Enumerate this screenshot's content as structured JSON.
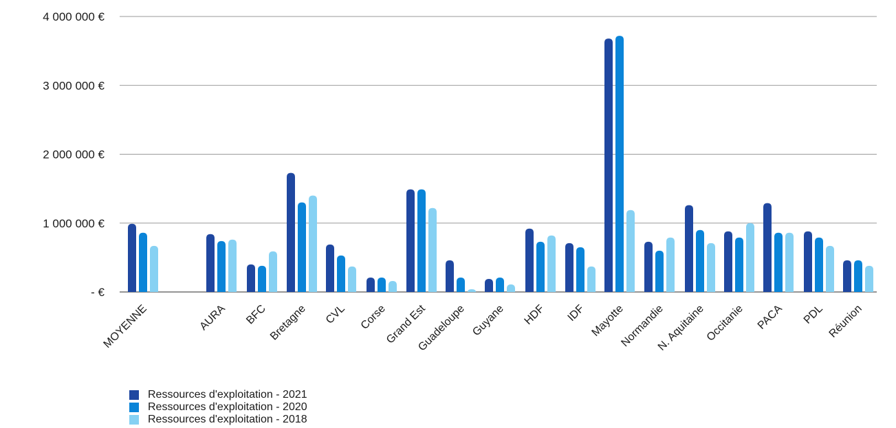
{
  "chart_data": {
    "type": "bar",
    "title": "",
    "xlabel": "",
    "ylabel": "",
    "ylim": [
      0,
      4000000
    ],
    "yticks": [
      {
        "value": 0,
        "label": "-     €"
      },
      {
        "value": 1000000,
        "label": "1 000 000  €"
      },
      {
        "value": 2000000,
        "label": "2 000 000  €"
      },
      {
        "value": 3000000,
        "label": "3 000 000  €"
      },
      {
        "value": 4000000,
        "label": "4 000 000  €"
      }
    ],
    "grid": true,
    "legend_position": "bottom-left",
    "categories": [
      "MOYENNE",
      "AURA",
      "BFC",
      "Bretagne",
      "CVL",
      "Corse",
      "Grand Est",
      "Guadeloupe",
      "Guyane",
      "HDF",
      "IDF",
      "Mayotte",
      "Normandie",
      "N. Aquitaine",
      "Occitanie",
      "PACA",
      "PDL",
      "Réunion"
    ],
    "series": [
      {
        "name": "Ressources d'exploitation - 2021",
        "color": "#1f47a0",
        "values": [
          990000,
          840000,
          400000,
          1730000,
          690000,
          210000,
          1490000,
          460000,
          190000,
          920000,
          710000,
          3680000,
          730000,
          1260000,
          880000,
          1290000,
          880000,
          460000
        ]
      },
      {
        "name": "Ressources d'exploitation - 2020",
        "color": "#0a84d8",
        "values": [
          860000,
          740000,
          380000,
          1300000,
          530000,
          210000,
          1490000,
          210000,
          210000,
          730000,
          650000,
          3720000,
          600000,
          900000,
          790000,
          860000,
          790000,
          460000
        ]
      },
      {
        "name": "Ressources d'exploitation - 2018",
        "color": "#86d1f3",
        "values": [
          670000,
          760000,
          590000,
          1400000,
          370000,
          160000,
          1220000,
          40000,
          110000,
          820000,
          370000,
          1190000,
          790000,
          710000,
          1000000,
          860000,
          670000,
          380000
        ]
      }
    ]
  }
}
